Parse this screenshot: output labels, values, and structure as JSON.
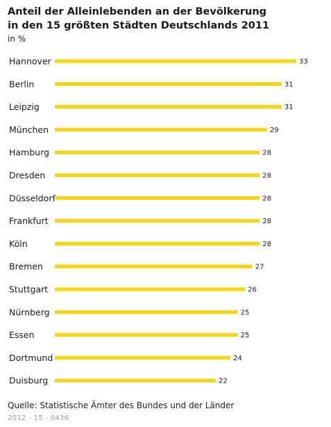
{
  "title": {
    "line1": "Anteil der Alleinlebenden an der Bevölkerung",
    "line2": "in den 15 größten Städten Deutschlands 2011",
    "unit": "in %"
  },
  "chart_data": {
    "type": "bar",
    "orientation": "horizontal",
    "categories": [
      "Hannover",
      "Berlin",
      "Leipzig",
      "München",
      "Hamburg",
      "Dresden",
      "Düsseldorf",
      "Frankfurt",
      "Köln",
      "Bremen",
      "Stuttgart",
      "Nürnberg",
      "Essen",
      "Dortmund",
      "Duisburg"
    ],
    "values": [
      33,
      31,
      31,
      29,
      28,
      28,
      28,
      28,
      28,
      27,
      26,
      25,
      25,
      24,
      22
    ],
    "title": "Anteil der Alleinlebenden an der Bevölkerung in den 15 größten Städten Deutschlands 2011",
    "xlabel": "",
    "ylabel": "",
    "unit": "in %",
    "xlim": [
      0,
      33
    ],
    "grid": false,
    "bar_color": "#f2d523",
    "data_labels": true
  },
  "footer": {
    "source": "Quelle: Statistische Ämter des Bundes und der Länder",
    "code": "2012 - 15 - 0436"
  }
}
